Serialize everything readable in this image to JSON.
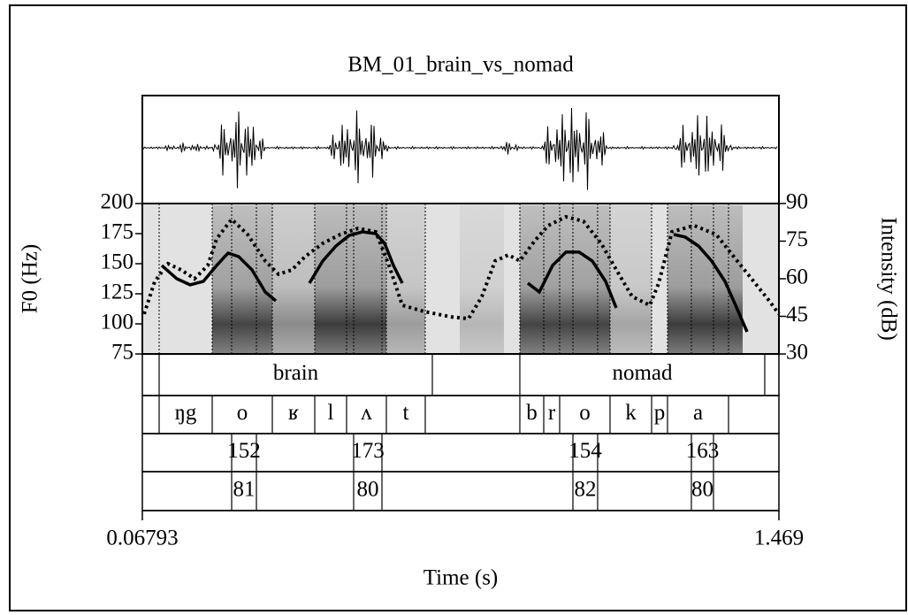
{
  "chart_data": {
    "type": "line",
    "title": "BM_01_brain_vs_nomad",
    "x_label": "Time (s)",
    "y_label": "F0 (Hz)",
    "y2_label": "Intensity (dB)",
    "xlim": [
      0.06793,
      1.469
    ],
    "xticks": [
      0.06793,
      1.469
    ],
    "ylim": [
      75,
      200
    ],
    "yticks": [
      75,
      100,
      125,
      150,
      175,
      200
    ],
    "y2lim": [
      30,
      90
    ],
    "y2ticks": [
      30,
      45,
      60,
      75,
      90
    ],
    "series": [
      {
        "color": "#000000",
        "style": "solid",
        "x": [
          0.1107,
          0.1438,
          0.173,
          0.2022,
          0.2314,
          0.2567,
          0.28,
          0.3092,
          0.3384,
          0.3618,
          null,
          0.4357,
          0.4649,
          0.4941,
          0.5233,
          0.5525,
          0.5817,
          0.6011,
          0.6206,
          0.64,
          null,
          0.9164,
          0.9416,
          0.9708,
          1.0,
          1.0292,
          1.0584,
          1.0876,
          1.1109,
          null,
          1.2374,
          1.2627,
          1.2919,
          1.3211,
          1.3503,
          1.3737,
          1.3989
        ],
        "values": [
          148.5,
          137.5,
          132.4,
          135.3,
          148.5,
          158.8,
          155.9,
          144.9,
          126.5,
          119.1,
          null,
          133.8,
          152.2,
          164.7,
          173.5,
          176.5,
          175.0,
          166.9,
          148.5,
          133.8,
          null,
          133.8,
          126.5,
          148.5,
          159.6,
          159.6,
          152.2,
          135.3,
          113.2,
          null,
          174.3,
          172.1,
          164.7,
          152.2,
          135.3,
          115.4,
          93.4
        ]
      },
      {
        "color": "#000000",
        "style": "dotted",
        "axis": "y2",
        "x": [
          0.0718,
          0.0952,
          0.1244,
          0.1536,
          0.1827,
          0.2119,
          0.2314,
          0.2645,
          0.2995,
          0.3384,
          0.3676,
          0.3968,
          0.426,
          0.4649,
          0.5038,
          0.5428,
          0.5817,
          0.6108,
          0.64,
          0.6887,
          0.7471,
          0.786,
          0.8152,
          0.8444,
          0.8736,
          0.8988,
          0.9319,
          0.9611,
          1.0,
          1.0389,
          1.0779,
          1.1168,
          1.1459,
          1.1849,
          1.2043,
          1.2335,
          1.2822,
          1.3308,
          1.3698,
          1.4087,
          1.4476,
          1.469
        ],
        "values": [
          45.9,
          58.9,
          66.0,
          63.5,
          60.0,
          65.3,
          75.9,
          83.7,
          77.7,
          67.1,
          61.8,
          63.5,
          68.8,
          74.1,
          77.7,
          80.1,
          78.7,
          65.3,
          49.4,
          46.9,
          44.8,
          44.1,
          52.9,
          67.1,
          69.5,
          67.1,
          75.2,
          81.2,
          84.7,
          82.9,
          74.1,
          61.8,
          52.9,
          49.4,
          58.2,
          78.7,
          81.2,
          77.7,
          68.8,
          60.0,
          51.2,
          45.9
        ]
      }
    ],
    "tiers": [
      {
        "boundaries": [
          0.1049,
          0.7062,
          0.8988,
          1.4378
        ],
        "labels": [
          {
            "start": 0.1049,
            "end": 0.7062,
            "text": "brain"
          },
          {
            "start": 0.8988,
            "end": 1.4378,
            "text": "nomad"
          }
        ]
      },
      {
        "boundaries": [
          0.1049,
          0.2217,
          0.354,
          0.4474,
          0.5174,
          0.605,
          0.6906,
          0.8988,
          0.9514,
          0.9864,
          1.0973,
          1.1888,
          1.2238,
          1.3581
        ],
        "labels": [
          {
            "start": 0.1049,
            "end": 0.2217,
            "text": "ŋg"
          },
          {
            "start": 0.2217,
            "end": 0.354,
            "text": "o"
          },
          {
            "start": 0.354,
            "end": 0.4474,
            "text": "ʁ"
          },
          {
            "start": 0.4474,
            "end": 0.5174,
            "text": "l"
          },
          {
            "start": 0.5174,
            "end": 0.605,
            "text": "ʌ"
          },
          {
            "start": 0.605,
            "end": 0.6906,
            "text": "t"
          },
          {
            "start": 0.8988,
            "end": 0.9514,
            "text": "b"
          },
          {
            "start": 0.9514,
            "end": 0.9864,
            "text": "r"
          },
          {
            "start": 0.9864,
            "end": 1.0973,
            "text": "o"
          },
          {
            "start": 1.0973,
            "end": 1.1888,
            "text": "k"
          },
          {
            "start": 1.1888,
            "end": 1.2238,
            "text": "p"
          },
          {
            "start": 1.2238,
            "end": 1.3581,
            "text": "a"
          }
        ]
      },
      {
        "boundaries": [
          0.2645,
          0.319,
          0.533,
          0.5953,
          1.0156,
          1.07,
          1.2763,
          1.325
        ],
        "labels": [
          {
            "start": 0.2645,
            "end": 0.319,
            "text": 152
          },
          {
            "start": 0.533,
            "end": 0.5953,
            "text": 173
          },
          {
            "start": 1.0156,
            "end": 1.07,
            "text": 154
          },
          {
            "start": 1.2763,
            "end": 1.325,
            "text": 163
          }
        ]
      },
      {
        "boundaries": [
          0.2645,
          0.319,
          0.533,
          0.5953,
          1.0156,
          1.07,
          1.2763,
          1.325
        ],
        "labels": [
          {
            "start": 0.2645,
            "end": 0.319,
            "text": 81
          },
          {
            "start": 0.533,
            "end": 0.5953,
            "text": 80
          },
          {
            "start": 1.0156,
            "end": 1.07,
            "text": 82
          },
          {
            "start": 1.2763,
            "end": 1.325,
            "text": 80
          }
        ]
      }
    ]
  }
}
